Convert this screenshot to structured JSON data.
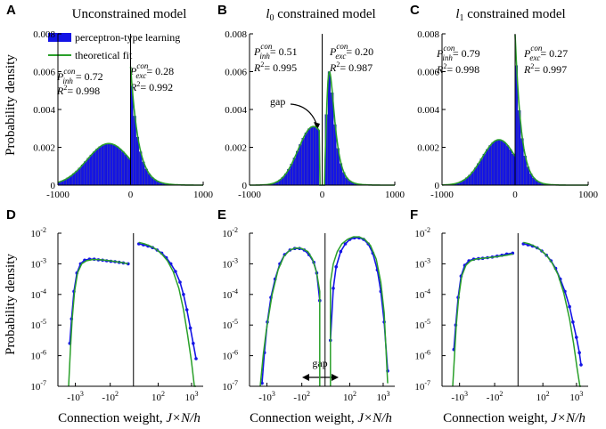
{
  "colors": {
    "hist": "#1414e6",
    "hist_edge": "#0a0a8c",
    "fit": "#2aa02a",
    "empirical": "#1414e6",
    "axis": "#000000"
  },
  "labels": {
    "ylabel_top": "Probability density",
    "ylabel_bottom": "Probability density",
    "xlabel_prefix": "Connection weight, ",
    "xlabel_math": "J×N/h"
  },
  "chart_data": [
    {
      "panel": "A",
      "type": "bar",
      "title": "Unconstrained model",
      "xlim": [
        -1000,
        1000
      ],
      "ylim": [
        0,
        0.008
      ],
      "xticks": [
        "-1000",
        "0",
        "1000"
      ],
      "yticks": [
        "0",
        "0.002",
        "0.004",
        "0.006",
        "0.008"
      ],
      "legend": [
        "perceptron-type learning",
        "theoretical fit"
      ],
      "p_inh": "= 0.72",
      "r2_inh": "= 0.998",
      "p_exc": "= 0.28",
      "r2_exc": "= 0.992",
      "inh": {
        "peak_x": -300,
        "peak_y": 0.0022,
        "width": 300
      },
      "exc": {
        "peak_y": 0.0063,
        "decay": 110
      }
    },
    {
      "panel": "B",
      "type": "bar",
      "title_math": "l",
      "title_sub": "0",
      "title_rest": " constrained model",
      "xlim": [
        -1000,
        1000
      ],
      "ylim": [
        0,
        0.008
      ],
      "xticks": [
        "-1000",
        "0",
        "1000"
      ],
      "yticks": [
        "0",
        "0.002",
        "0.004",
        "0.006",
        "0.008"
      ],
      "p_inh": "= 0.51",
      "r2_inh": "= 0.995",
      "p_exc": "= 0.20",
      "r2_exc": "= 0.987",
      "annotation": "gap",
      "inh": {
        "peak_x": -120,
        "peak_y": 0.0031,
        "width": 210,
        "gap_edge": -40
      },
      "exc": {
        "peak_x": 100,
        "peak_y": 0.006,
        "width": 110,
        "gap_edge": 40
      }
    },
    {
      "panel": "C",
      "type": "bar",
      "title_math": "l",
      "title_sub": "1",
      "title_rest": " constrained model",
      "xlim": [
        -1000,
        1000
      ],
      "ylim": [
        0,
        0.008
      ],
      "xticks": [
        "-1000",
        "0",
        "1000"
      ],
      "yticks": [
        "0",
        "0.002",
        "0.004",
        "0.006",
        "0.008"
      ],
      "p_inh": "= 0.79",
      "r2_inh": "= 0.998",
      "p_exc": "= 0.27",
      "r2_exc": "= 0.997",
      "inh": {
        "peak_x": -220,
        "peak_y": 0.0024,
        "width": 230
      },
      "exc": {
        "peak_y": 0.008,
        "decay": 85
      }
    },
    {
      "panel": "D",
      "type": "line",
      "yscale": "log",
      "ylim_exp": [
        -7,
        -2
      ],
      "yticks_exp": [
        "-7",
        "-6",
        "-5",
        "-4",
        "-3",
        "-2"
      ],
      "xticks": [
        "-10",
        "-10",
        "10",
        "10"
      ],
      "xtick_exp": [
        "3",
        "2",
        "2",
        "3"
      ],
      "series": [
        {
          "name": "inh_empirical",
          "x": [
            0.02,
            0.05,
            0.09,
            0.14,
            0.2,
            0.27,
            0.35,
            0.43,
            0.5,
            0.57,
            0.64,
            0.71,
            0.78,
            0.85,
            0.92,
            1.0
          ],
          "y": [
            -5.6,
            -4.8,
            -3.9,
            -3.3,
            -3.0,
            -2.88,
            -2.85,
            -2.85,
            -2.87,
            -2.88,
            -2.9,
            -2.92,
            -2.93,
            -2.95,
            -2.97,
            -3.0
          ]
        },
        {
          "name": "inh_fit",
          "x": [
            0.0,
            0.03,
            0.06,
            0.1,
            0.15,
            0.22,
            0.3,
            0.4,
            0.5,
            0.6,
            0.7,
            0.8,
            0.9,
            1.0
          ],
          "y": [
            -7.0,
            -5.8,
            -4.8,
            -3.9,
            -3.3,
            -3.0,
            -2.9,
            -2.86,
            -2.86,
            -2.88,
            -2.9,
            -2.93,
            -2.96,
            -3.0
          ]
        },
        {
          "name": "exc_empirical",
          "x": [
            0.0,
            0.08,
            0.16,
            0.24,
            0.32,
            0.4,
            0.48,
            0.56,
            0.64,
            0.72,
            0.78,
            0.84,
            0.9,
            0.95,
            1.0
          ],
          "y": [
            -2.35,
            -2.38,
            -2.42,
            -2.47,
            -2.55,
            -2.65,
            -2.8,
            -3.0,
            -3.25,
            -3.6,
            -4.0,
            -4.5,
            -5.1,
            -5.6,
            -6.1
          ]
        },
        {
          "name": "exc_fit",
          "x": [
            0.0,
            0.1,
            0.2,
            0.3,
            0.4,
            0.5,
            0.6,
            0.7,
            0.78,
            0.85,
            0.92,
            0.97,
            1.0
          ],
          "y": [
            -2.3,
            -2.35,
            -2.42,
            -2.52,
            -2.68,
            -2.9,
            -3.25,
            -3.8,
            -4.5,
            -5.3,
            -6.2,
            -7.0,
            -7.0
          ]
        }
      ]
    },
    {
      "panel": "E",
      "type": "line",
      "yscale": "log",
      "ylim_exp": [
        -7,
        -2
      ],
      "yticks_exp": [
        "-7",
        "-6",
        "-5",
        "-4",
        "-3",
        "-2"
      ],
      "xticks": [
        "-10",
        "-10",
        "10",
        "10"
      ],
      "xtick_exp": [
        "3",
        "2",
        "2",
        "3"
      ],
      "annotation": "gap",
      "series": [
        {
          "name": "inh_empirical",
          "x": [
            0.03,
            0.07,
            0.12,
            0.18,
            0.25,
            0.33,
            0.41,
            0.5,
            0.58,
            0.66,
            0.74,
            0.82,
            0.9,
            0.95,
            1.0
          ],
          "y": [
            -6.9,
            -5.9,
            -4.9,
            -4.1,
            -3.5,
            -3.0,
            -2.7,
            -2.55,
            -2.5,
            -2.5,
            -2.55,
            -2.7,
            -2.95,
            -3.3,
            -4.2
          ]
        },
        {
          "name": "inh_fit",
          "x": [
            0.0,
            0.05,
            0.1,
            0.2,
            0.3,
            0.4,
            0.5,
            0.6,
            0.7,
            0.8,
            0.88,
            0.95,
            1.0,
            1.0
          ],
          "y": [
            -7.0,
            -6.0,
            -5.2,
            -4.0,
            -3.2,
            -2.75,
            -2.55,
            -2.48,
            -2.5,
            -2.6,
            -2.85,
            -3.3,
            -3.9,
            -7.0
          ]
        },
        {
          "name": "exc_empirical",
          "x": [
            0.0,
            0.05,
            0.1,
            0.18,
            0.26,
            0.34,
            0.42,
            0.5,
            0.58,
            0.66,
            0.74,
            0.82,
            0.88,
            0.94,
            1.0
          ],
          "y": [
            -5.5,
            -3.8,
            -3.1,
            -2.6,
            -2.35,
            -2.2,
            -2.15,
            -2.15,
            -2.2,
            -2.35,
            -2.65,
            -3.2,
            -3.9,
            -4.9,
            -6.5
          ]
        },
        {
          "name": "exc_fit",
          "x": [
            0.0,
            0.0,
            0.05,
            0.12,
            0.2,
            0.3,
            0.4,
            0.5,
            0.6,
            0.7,
            0.8,
            0.88,
            0.94,
            1.0
          ],
          "y": [
            -7.0,
            -3.6,
            -3.0,
            -2.6,
            -2.35,
            -2.2,
            -2.12,
            -2.12,
            -2.2,
            -2.4,
            -2.85,
            -3.6,
            -4.6,
            -6.9
          ]
        }
      ]
    },
    {
      "panel": "F",
      "type": "line",
      "yscale": "log",
      "ylim_exp": [
        -7,
        -2
      ],
      "yticks_exp": [
        "-7",
        "-6",
        "-5",
        "-4",
        "-3",
        "-2"
      ],
      "xticks": [
        "-10",
        "-10",
        "10",
        "10"
      ],
      "xtick_exp": [
        "3",
        "2",
        "2",
        "3"
      ],
      "series": [
        {
          "name": "inh_empirical",
          "x": [
            0.02,
            0.05,
            0.09,
            0.14,
            0.2,
            0.27,
            0.35,
            0.43,
            0.5,
            0.58,
            0.66,
            0.74,
            0.82,
            0.9,
            1.0
          ],
          "y": [
            -5.8,
            -5.0,
            -4.1,
            -3.4,
            -3.05,
            -2.9,
            -2.85,
            -2.83,
            -2.82,
            -2.8,
            -2.78,
            -2.75,
            -2.72,
            -2.68,
            -2.65
          ]
        },
        {
          "name": "inh_fit",
          "x": [
            0.0,
            0.03,
            0.06,
            0.1,
            0.15,
            0.22,
            0.3,
            0.4,
            0.5,
            0.6,
            0.7,
            0.8,
            0.9,
            1.0
          ],
          "y": [
            -7.0,
            -6.0,
            -5.0,
            -4.1,
            -3.4,
            -3.05,
            -2.9,
            -2.84,
            -2.82,
            -2.8,
            -2.78,
            -2.75,
            -2.72,
            -2.68
          ]
        },
        {
          "name": "exc_empirical",
          "x": [
            0.0,
            0.08,
            0.16,
            0.24,
            0.32,
            0.4,
            0.48,
            0.56,
            0.64,
            0.72,
            0.8,
            0.86,
            0.92,
            0.97,
            1.0
          ],
          "y": [
            -2.35,
            -2.38,
            -2.42,
            -2.48,
            -2.58,
            -2.72,
            -2.9,
            -3.15,
            -3.5,
            -3.9,
            -4.4,
            -4.9,
            -5.4,
            -5.9,
            -6.3
          ]
        },
        {
          "name": "exc_fit",
          "x": [
            0.0,
            0.1,
            0.2,
            0.3,
            0.4,
            0.5,
            0.6,
            0.7,
            0.8,
            0.87,
            0.93,
            0.98,
            1.0
          ],
          "y": [
            -2.3,
            -2.35,
            -2.43,
            -2.55,
            -2.72,
            -2.98,
            -3.35,
            -3.95,
            -4.8,
            -5.6,
            -6.4,
            -7.0,
            -7.0
          ]
        }
      ]
    }
  ]
}
